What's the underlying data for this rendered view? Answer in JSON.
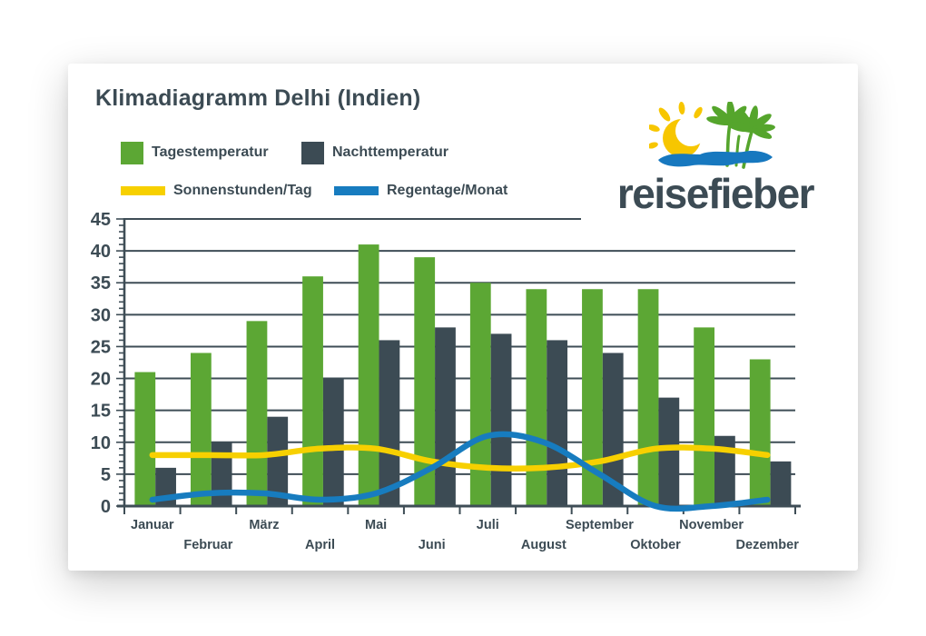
{
  "logo": {
    "text": "reisefieber"
  },
  "colors": {
    "text": "#3C4B54",
    "grid": "#3E4D56",
    "card_bg": "#FFFFFF",
    "logo_sun": "#F7C600",
    "logo_palm": "#55A52C",
    "logo_wave": "#1778BF"
  },
  "chart_data": {
    "type": "bar",
    "title": "Klimadiagramm Delhi (Indien)",
    "categories": [
      "Januar",
      "Februar",
      "März",
      "April",
      "Mai",
      "Juni",
      "Juli",
      "August",
      "September",
      "Oktober",
      "November",
      "Dezember"
    ],
    "series": [
      {
        "name": "Tagestemperatur",
        "kind": "bar",
        "color": "#5CA734",
        "values": [
          21,
          24,
          29,
          36,
          41,
          39,
          35,
          34,
          34,
          34,
          28,
          23
        ]
      },
      {
        "name": "Nachttemperatur",
        "kind": "bar",
        "color": "#3C4B54",
        "values": [
          6,
          10,
          14,
          20,
          26,
          28,
          27,
          26,
          24,
          17,
          11,
          7
        ]
      },
      {
        "name": "Sonnenstunden/Tag",
        "kind": "line",
        "color": "#F7D000",
        "values": [
          8,
          8,
          8,
          9,
          9,
          7,
          6,
          6,
          7,
          9,
          9,
          8
        ]
      },
      {
        "name": "Regentage/Monat",
        "kind": "line",
        "color": "#177CBF",
        "values": [
          1,
          2,
          2,
          1,
          2,
          6,
          11,
          10,
          5,
          0,
          0,
          1
        ]
      }
    ],
    "ylim": [
      0,
      45
    ],
    "ytick_step": 5,
    "yticks": [
      0,
      5,
      10,
      15,
      20,
      25,
      30,
      35,
      40,
      45
    ],
    "grid": true,
    "legend_position": "top-left",
    "x_label_rows": "alternating"
  }
}
